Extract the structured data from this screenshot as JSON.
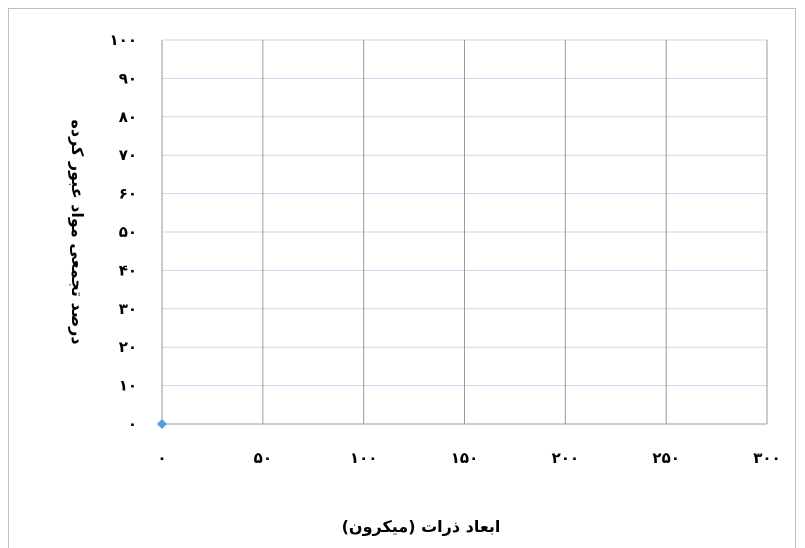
{
  "chart_data": {
    "type": "scatter",
    "xlabel": "ابعاد ذرات (میکرون)",
    "ylabel": "درصد تجمعی مواد عبور کرده",
    "x_ticks": [
      0,
      50,
      100,
      150,
      200,
      250,
      300
    ],
    "y_ticks": [
      0,
      10,
      20,
      30,
      40,
      50,
      60,
      70,
      80,
      90,
      100
    ],
    "x_tick_labels": [
      "۰",
      "۵۰",
      "۱۰۰",
      "۱۵۰",
      "۲۰۰",
      "۲۵۰",
      "۳۰۰"
    ],
    "y_tick_labels": [
      "۰",
      "۱۰",
      "۲۰",
      "۳۰",
      "۴۰",
      "۵۰",
      "۶۰",
      "۷۰",
      "۸۰",
      "۹۰",
      "۱۰۰"
    ],
    "xlim": [
      0,
      300
    ],
    "ylim": [
      0,
      100
    ],
    "grid": {
      "vertical": true,
      "horizontal": true
    },
    "series": [
      {
        "x": [
          0
        ],
        "y": [
          0
        ],
        "marker": "diamond",
        "color": "#5b9bd5"
      }
    ],
    "colors": {
      "h_grid": "#c6d9f0",
      "v_grid": "#9a9a9a",
      "axis": "#9a9a9a",
      "marker": "#5b9bd5"
    }
  }
}
